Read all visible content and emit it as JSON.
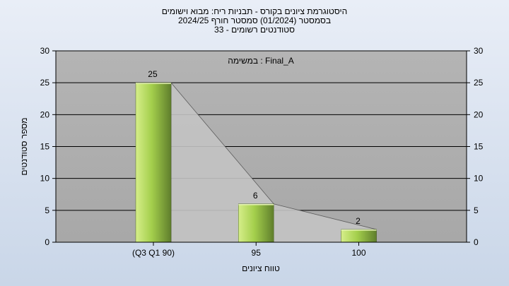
{
  "chart_data": {
    "type": "bar",
    "title_lines": [
      "היסטוגרמת ציונים בקורס - תבניות ריח: מבוא וישומים",
      "בסמסטר  (01/2024)  סמסטר חורף 2024/25",
      "סטודנטים רשומים - 33"
    ],
    "annotation": "במשימה : Final_A",
    "categories": [
      "(Q3 Q1 90)",
      "95",
      "100"
    ],
    "values": [
      25,
      6,
      2
    ],
    "xlabel": "טווח ציונים",
    "ylabel": "מספר סטודנטים",
    "ylim": [
      0,
      30
    ],
    "yticks": [
      0,
      5,
      10,
      15,
      20,
      25,
      30
    ],
    "grid": "horizontal",
    "colors": {
      "bar_light": "#d6ee8a",
      "bar_mid": "#a4cf4c",
      "bar_dark": "#5f7e2c",
      "plot_bg": "#acacac",
      "gridline": "#000000",
      "connector_fill": "#c4c4c4"
    }
  }
}
